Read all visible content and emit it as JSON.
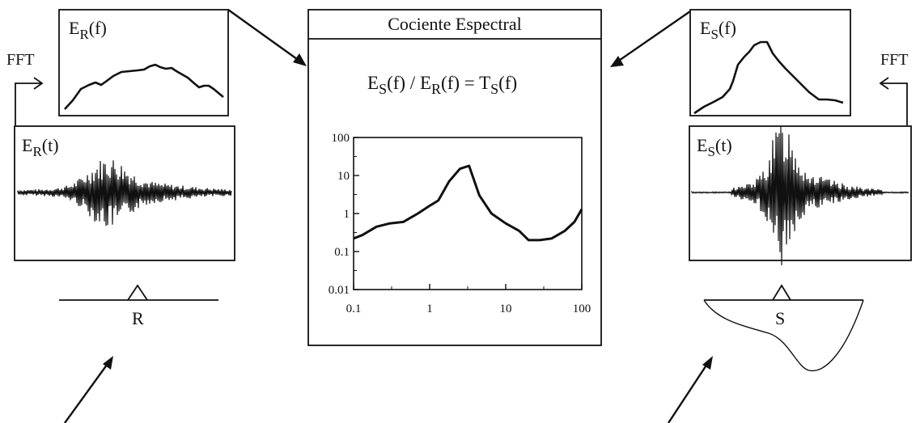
{
  "colors": {
    "ink": "#111111",
    "paper": "#ffffff"
  },
  "left": {
    "fft_label": "FFT",
    "spectrum_label": {
      "main": "E",
      "sub": "R",
      "arg": "(f)"
    },
    "signal_label": {
      "main": "E",
      "sub": "R",
      "arg": "(t)"
    },
    "site_label": "R"
  },
  "right": {
    "fft_label": "FFT",
    "spectrum_label": {
      "main": "E",
      "sub": "S",
      "arg": "(f)"
    },
    "signal_label": {
      "main": "E",
      "sub": "S",
      "arg": "(t)"
    },
    "site_label": "S"
  },
  "center": {
    "title": "Cociente Espectral",
    "equation": {
      "a_main": "E",
      "a_sub": "S",
      "a_arg": "(f) / ",
      "b_main": "E",
      "b_sub": "R",
      "b_arg": "(f) = ",
      "c_main": "T",
      "c_sub": "S",
      "c_arg": "(f)"
    },
    "chart_data": {
      "type": "line",
      "xscale": "log",
      "yscale": "log",
      "xlim": [
        0.1,
        100
      ],
      "ylim": [
        0.01,
        100
      ],
      "xticks": [
        "0.1",
        "1",
        "10",
        "100"
      ],
      "yticks": [
        "100",
        "10",
        "1",
        "0.1",
        "0.01"
      ],
      "grid": false,
      "series": [
        {
          "x": [
            0.1,
            0.13,
            0.2,
            0.3,
            0.45,
            0.7,
            1.0,
            1.3,
            1.8,
            2.5,
            3.3,
            4.5,
            6.5,
            10,
            15,
            20,
            28,
            40,
            60,
            80,
            100
          ],
          "y": [
            0.22,
            0.27,
            0.45,
            0.55,
            0.6,
            1.0,
            1.6,
            2.2,
            7.0,
            15,
            18,
            3.0,
            1.0,
            0.55,
            0.35,
            0.2,
            0.2,
            0.22,
            0.35,
            0.6,
            1.3
          ]
        }
      ]
    }
  }
}
